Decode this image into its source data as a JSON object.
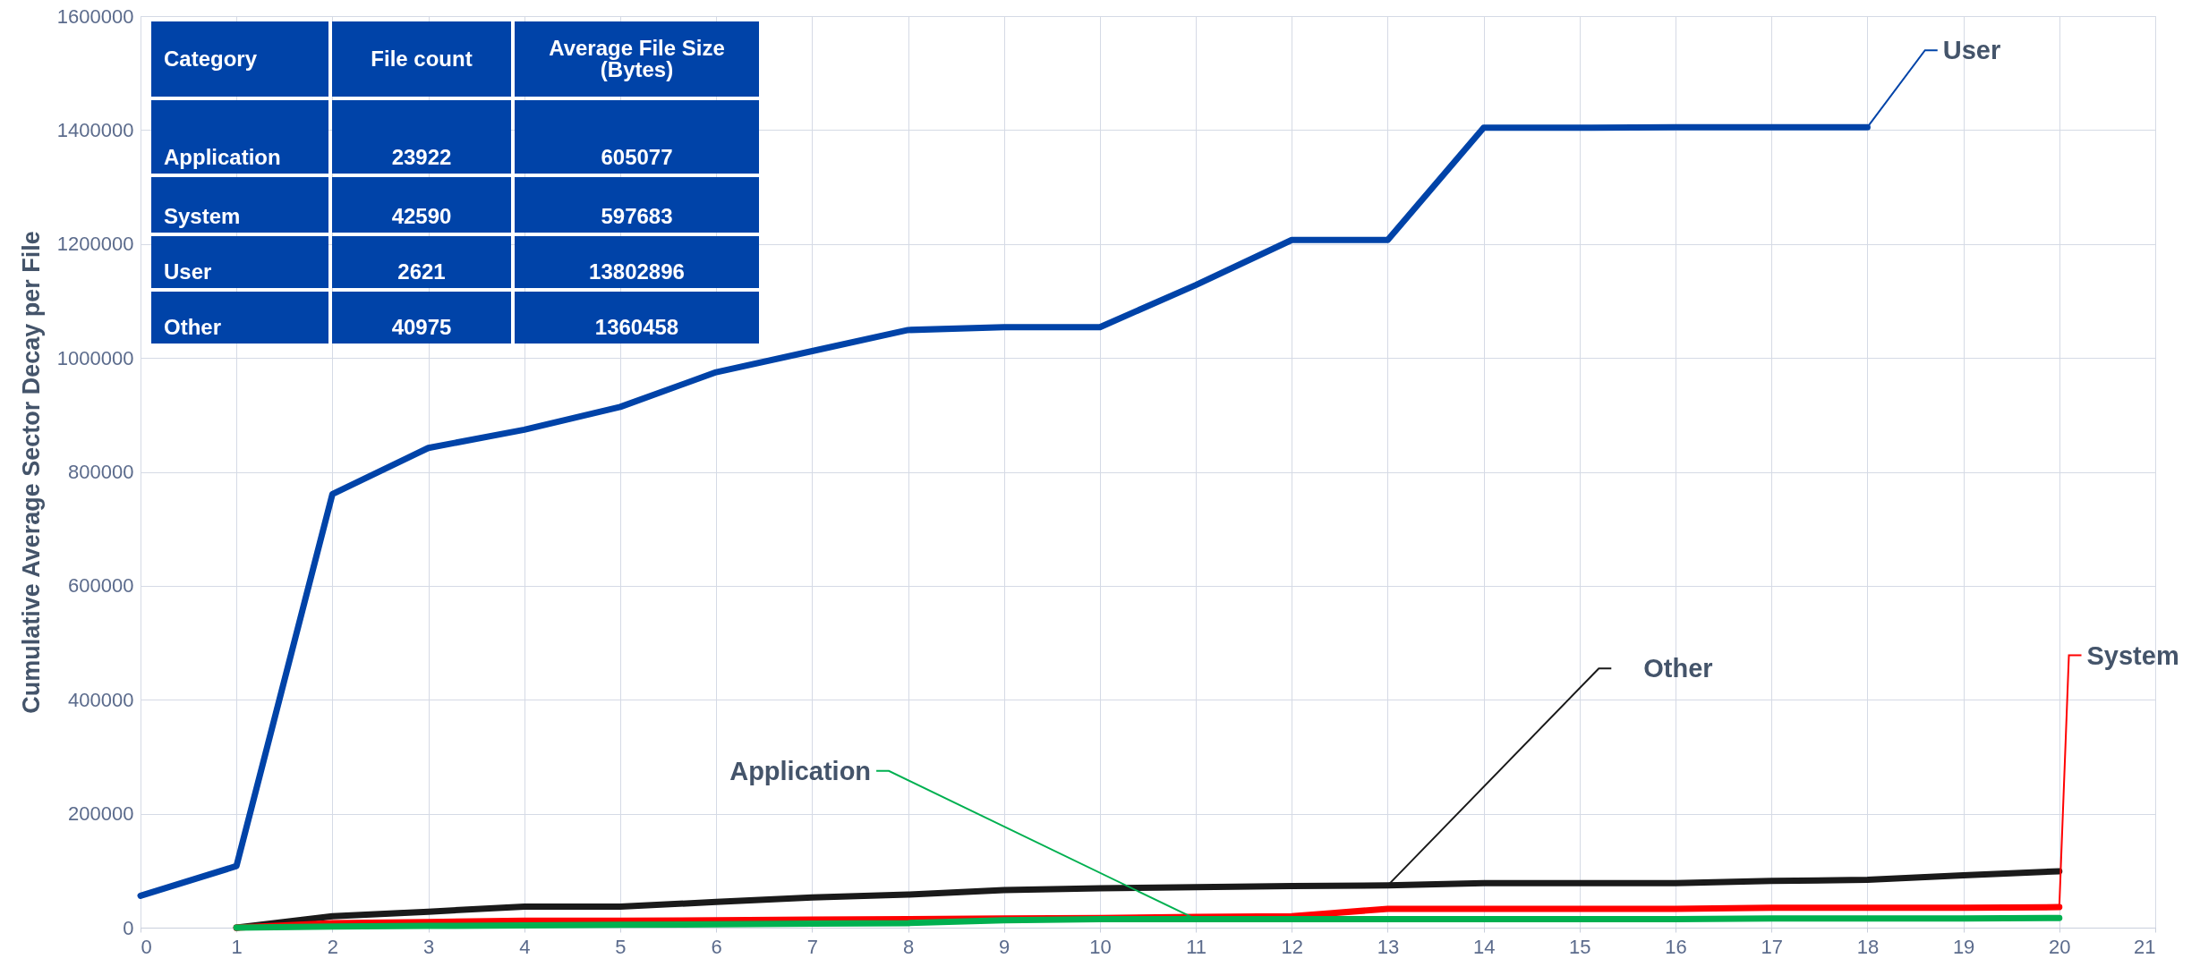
{
  "chart_data": {
    "type": "line",
    "ylabel": "Cumulative Average Sector Decay per File",
    "x": [
      0,
      1,
      2,
      3,
      4,
      5,
      6,
      7,
      8,
      9,
      10,
      11,
      12,
      13,
      14,
      15,
      16,
      17,
      18,
      19,
      20
    ],
    "xlim": [
      0,
      21
    ],
    "xticks": [
      0,
      1,
      2,
      3,
      4,
      5,
      6,
      7,
      8,
      9,
      10,
      11,
      12,
      13,
      14,
      15,
      16,
      17,
      18,
      19,
      20,
      21
    ],
    "ylim": [
      0,
      1600000
    ],
    "yticks": [
      0,
      200000,
      400000,
      600000,
      800000,
      1000000,
      1200000,
      1400000,
      1600000
    ],
    "grid": true,
    "line_style": "solid",
    "marker": "none",
    "series": [
      {
        "name": "User",
        "color": "#0043a8",
        "values": [
          56000,
          108000,
          761000,
          842000,
          874000,
          914000,
          975000,
          1012000,
          1049000,
          1054000,
          1054000,
          1128000,
          1207000,
          1207000,
          1404000,
          1404000,
          1405000,
          1405000,
          1405000,
          null,
          null
        ]
      },
      {
        "name": "Other",
        "color": "#1a1a1a",
        "values": [
          null,
          0,
          20000,
          28000,
          37000,
          37000,
          45000,
          53000,
          58000,
          66000,
          69000,
          71000,
          73000,
          74000,
          78000,
          78000,
          78000,
          82000,
          84000,
          92000,
          99000
        ]
      },
      {
        "name": "System",
        "color": "#ff0000",
        "values": [
          null,
          0,
          8000,
          10000,
          12000,
          12000,
          13000,
          14000,
          15000,
          16000,
          17000,
          19000,
          20000,
          33000,
          33000,
          33000,
          33000,
          35000,
          35000,
          35000,
          36000
        ]
      },
      {
        "name": "Application",
        "color": "#00b050",
        "values": [
          null,
          0,
          2000,
          3000,
          4000,
          5000,
          6000,
          7000,
          8000,
          13000,
          15000,
          15000,
          15000,
          15000,
          15000,
          15000,
          15000,
          16000,
          16000,
          16000,
          17000
        ]
      }
    ],
    "annotations": [
      "Category",
      "File count",
      "Average File Size (Bytes)",
      "Application",
      "23922",
      "605077",
      "System",
      "42590",
      "597683",
      "User",
      "2621",
      "13802896",
      "Other",
      "40975",
      "1360458"
    ]
  }
}
